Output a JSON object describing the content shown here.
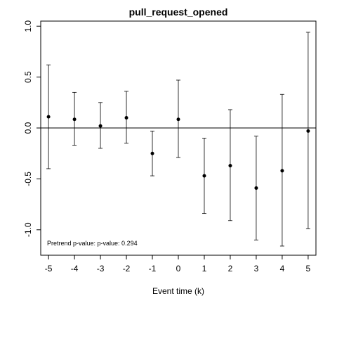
{
  "chart_data": {
    "type": "scatter",
    "title": "pull_request_opened",
    "xlabel": "Event time (k)",
    "ylabel": "",
    "xlim": [
      -5.3,
      5.3
    ],
    "ylim": [
      -1.25,
      1.05
    ],
    "x_ticks": [
      "-5",
      "-4",
      "-3",
      "-2",
      "-1",
      "0",
      "1",
      "2",
      "3",
      "4",
      "5"
    ],
    "y_ticks": [
      "1.0",
      "0.5",
      "0.0",
      "-0.5",
      "-1.0"
    ],
    "reference_line_y": 0,
    "annotation": "Pretrend p-value: p-value: 0.294",
    "grid": false,
    "points": [
      {
        "x": -5,
        "y": 0.11,
        "lower": -0.4,
        "upper": 0.62
      },
      {
        "x": -4,
        "y": 0.085,
        "lower": -0.17,
        "upper": 0.35
      },
      {
        "x": -3,
        "y": 0.02,
        "lower": -0.2,
        "upper": 0.25
      },
      {
        "x": -2,
        "y": 0.1,
        "lower": -0.15,
        "upper": 0.36
      },
      {
        "x": -1,
        "y": -0.25,
        "lower": -0.47,
        "upper": -0.03
      },
      {
        "x": 0,
        "y": 0.085,
        "lower": -0.29,
        "upper": 0.47
      },
      {
        "x": 1,
        "y": -0.47,
        "lower": -0.84,
        "upper": -0.1
      },
      {
        "x": 2,
        "y": -0.37,
        "lower": -0.91,
        "upper": 0.18
      },
      {
        "x": 3,
        "y": -0.59,
        "lower": -1.1,
        "upper": -0.08
      },
      {
        "x": 4,
        "y": -0.42,
        "lower": -1.16,
        "upper": 0.33
      },
      {
        "x": 5,
        "y": -0.03,
        "lower": -0.99,
        "upper": 0.94
      }
    ]
  }
}
